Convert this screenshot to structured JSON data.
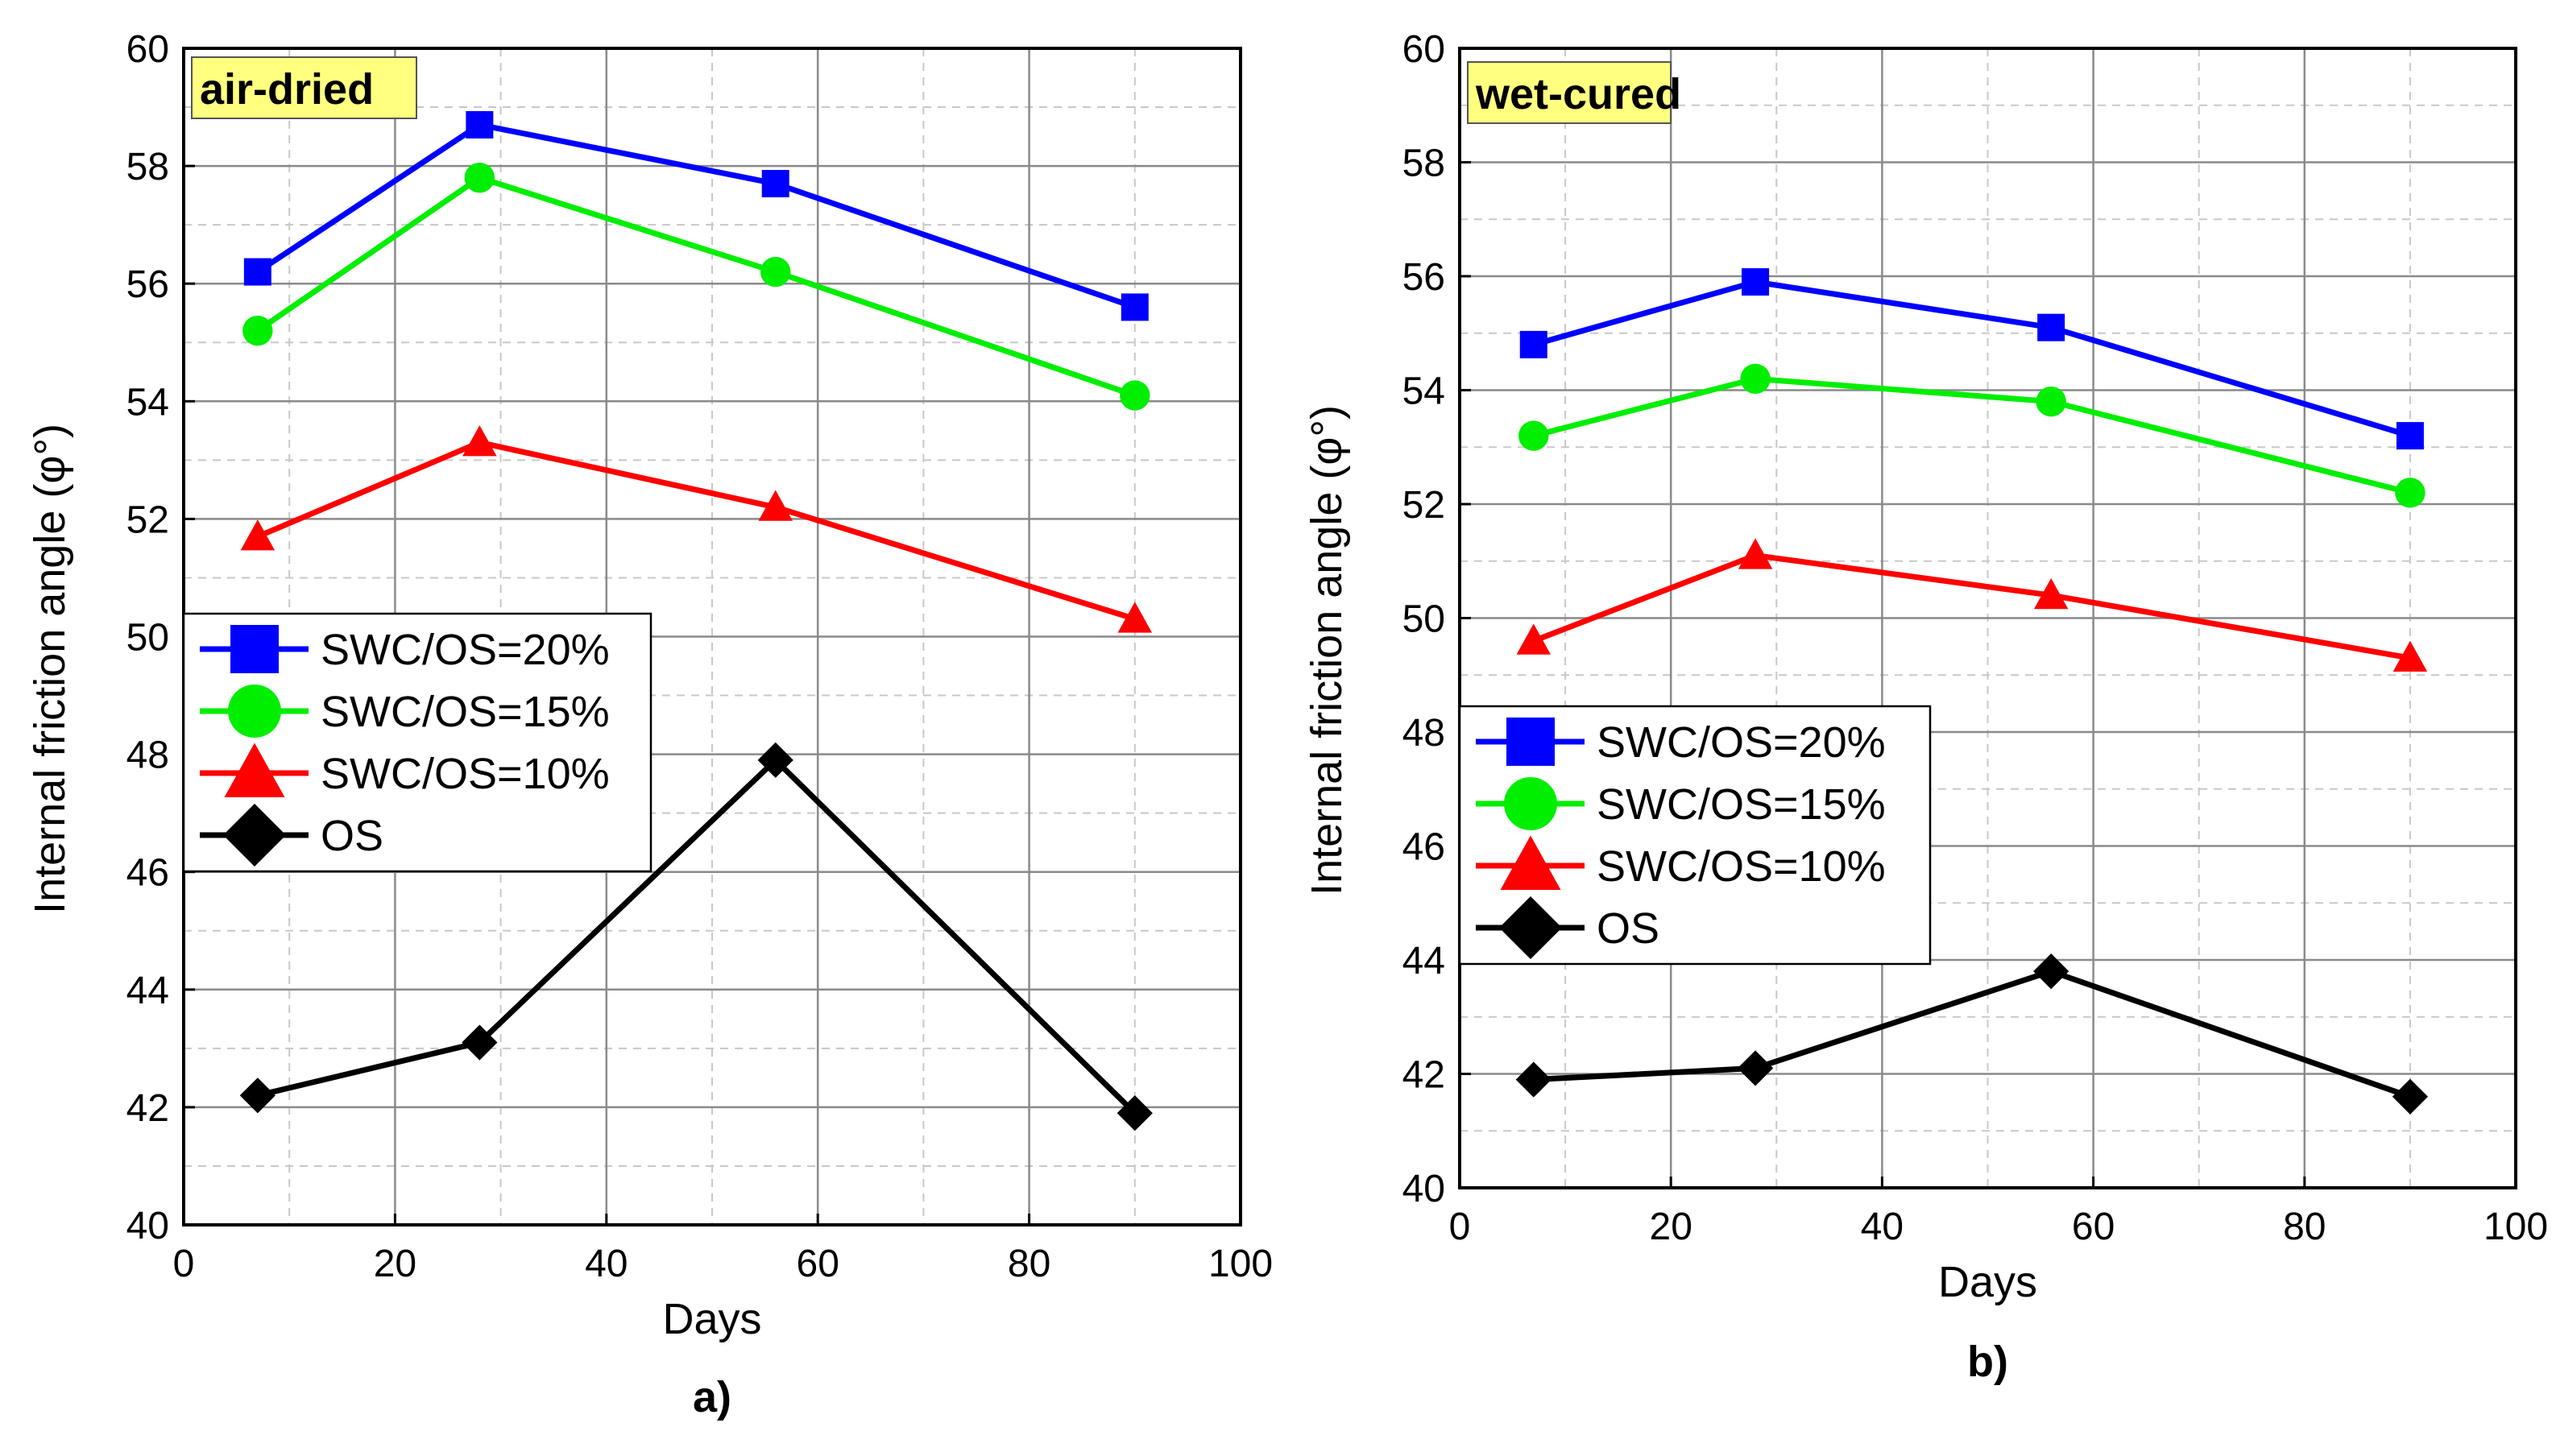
{
  "chart_data": [
    {
      "type": "line",
      "panel_label": "a)",
      "tag": "air-dried",
      "xlabel": "Days",
      "ylabel": "Internal friction angle (φ°)",
      "xlim": [
        0,
        100
      ],
      "ylim": [
        40,
        60
      ],
      "xticks": [
        "0",
        "20",
        "40",
        "60",
        "80",
        "100"
      ],
      "yticks": [
        "40",
        "42",
        "44",
        "46",
        "48",
        "50",
        "52",
        "54",
        "56",
        "58",
        "60"
      ],
      "grid": true,
      "legend_position": "center-left",
      "x": [
        7,
        28,
        56,
        90
      ],
      "series": [
        {
          "name": "SWC/OS=20%",
          "color": "#0000ff",
          "marker": "square",
          "values": [
            56.2,
            58.7,
            57.7,
            55.6
          ]
        },
        {
          "name": "SWC/OS=15%",
          "color": "#00ee00",
          "marker": "circle",
          "values": [
            55.2,
            57.8,
            56.2,
            54.1
          ]
        },
        {
          "name": "SWC/OS=10%",
          "color": "#ff0000",
          "marker": "triangle",
          "values": [
            51.7,
            53.3,
            52.2,
            50.3
          ]
        },
        {
          "name": "OS",
          "color": "#000000",
          "marker": "diamond",
          "values": [
            42.2,
            43.1,
            47.9,
            41.9
          ]
        }
      ]
    },
    {
      "type": "line",
      "panel_label": "b)",
      "tag": "wet-cured",
      "xlabel": "Days",
      "ylabel": "Internal friction angle (φ°)",
      "xlim": [
        0,
        100
      ],
      "ylim": [
        40,
        60
      ],
      "xticks": [
        "0",
        "20",
        "40",
        "60",
        "80",
        "100"
      ],
      "yticks": [
        "40",
        "42",
        "44",
        "46",
        "48",
        "50",
        "52",
        "54",
        "56",
        "58",
        "60"
      ],
      "grid": true,
      "legend_position": "center-left",
      "x": [
        7,
        28,
        56,
        90
      ],
      "series": [
        {
          "name": "SWC/OS=20%",
          "color": "#0000ff",
          "marker": "square",
          "values": [
            54.8,
            55.9,
            55.1,
            53.2
          ]
        },
        {
          "name": "SWC/OS=15%",
          "color": "#00ee00",
          "marker": "circle",
          "values": [
            53.2,
            54.2,
            53.8,
            52.2
          ]
        },
        {
          "name": "SWC/OS=10%",
          "color": "#ff0000",
          "marker": "triangle",
          "values": [
            49.6,
            51.1,
            50.4,
            49.3
          ]
        },
        {
          "name": "OS",
          "color": "#000000",
          "marker": "diamond",
          "values": [
            41.9,
            42.1,
            43.8,
            41.6
          ]
        }
      ]
    }
  ]
}
